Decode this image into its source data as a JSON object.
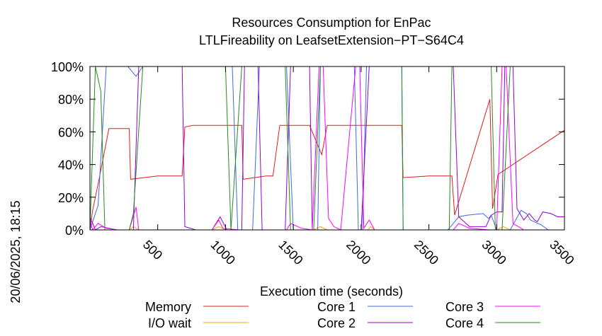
{
  "chart_data": {
    "type": "line",
    "title_line1": "Resources Consumption for EnPac",
    "title_line2": "LTLFireability on LeafsetExtension−PT−S64C4",
    "xlabel": "Execution time (seconds)",
    "ylabel": "",
    "side_label": "20/06/2025, 18:15",
    "xlim": [
      0,
      3500
    ],
    "ylim": [
      0,
      100
    ],
    "x_ticks": [
      500,
      1000,
      1500,
      2000,
      2500,
      3000,
      3500
    ],
    "y_ticks": [
      0,
      20,
      40,
      60,
      80,
      100
    ],
    "y_tick_labels": [
      "0%",
      "20%",
      "40%",
      "60%",
      "80%",
      "100%"
    ],
    "grid": false,
    "legend_position": "bottom",
    "series": [
      {
        "name": "Memory",
        "color": "#e41a1c",
        "points": [
          [
            0,
            0
          ],
          [
            20,
            12
          ],
          [
            60,
            28
          ],
          [
            140,
            62
          ],
          [
            290,
            62
          ],
          [
            300,
            31
          ],
          [
            500,
            33
          ],
          [
            680,
            33
          ],
          [
            700,
            63
          ],
          [
            760,
            64
          ],
          [
            1120,
            64
          ],
          [
            1130,
            31
          ],
          [
            1300,
            33
          ],
          [
            1350,
            33
          ],
          [
            1400,
            64
          ],
          [
            1620,
            64
          ],
          [
            1710,
            46
          ],
          [
            1750,
            64
          ],
          [
            1990,
            64
          ],
          [
            2000,
            64
          ],
          [
            2080,
            64
          ],
          [
            2300,
            64
          ],
          [
            2310,
            32
          ],
          [
            2500,
            33
          ],
          [
            2670,
            33
          ],
          [
            2690,
            9
          ],
          [
            2950,
            80
          ],
          [
            2970,
            13
          ],
          [
            3010,
            34
          ],
          [
            3500,
            61
          ]
        ]
      },
      {
        "name": "I/O wait",
        "color": "#ffa500",
        "points": [
          [
            0,
            0
          ],
          [
            290,
            0
          ],
          [
            320,
            2
          ],
          [
            360,
            0
          ],
          [
            900,
            0
          ],
          [
            950,
            2
          ],
          [
            1000,
            0
          ],
          [
            1650,
            0
          ],
          [
            1700,
            2
          ],
          [
            1750,
            0
          ],
          [
            2050,
            0
          ],
          [
            2070,
            2
          ],
          [
            2100,
            0
          ],
          [
            3000,
            0
          ],
          [
            3050,
            2
          ],
          [
            3100,
            0
          ],
          [
            3500,
            0
          ]
        ]
      },
      {
        "name": "Core 1",
        "color": "#4169e1",
        "points": [
          [
            0,
            0
          ],
          [
            60,
            15
          ],
          [
            120,
            100
          ],
          [
            280,
            100
          ],
          [
            340,
            94
          ],
          [
            390,
            100
          ],
          [
            700,
            100
          ],
          [
            740,
            100
          ],
          [
            1050,
            100
          ],
          [
            1090,
            0
          ],
          [
            1200,
            0
          ],
          [
            1250,
            100
          ],
          [
            1450,
            100
          ],
          [
            1500,
            0
          ],
          [
            1680,
            0
          ],
          [
            1700,
            100
          ],
          [
            1760,
            100
          ],
          [
            1850,
            100
          ],
          [
            1950,
            100
          ],
          [
            1980,
            0
          ],
          [
            2010,
            0
          ],
          [
            2040,
            100
          ],
          [
            2300,
            100
          ],
          [
            2310,
            0
          ],
          [
            2640,
            0
          ],
          [
            2720,
            8
          ],
          [
            2780,
            9
          ],
          [
            2900,
            10
          ],
          [
            2940,
            7
          ],
          [
            2960,
            9
          ],
          [
            3000,
            0
          ],
          [
            3100,
            0
          ],
          [
            3180,
            12
          ],
          [
            3220,
            10
          ],
          [
            3250,
            6
          ],
          [
            3330,
            3
          ],
          [
            3380,
            0
          ],
          [
            3500,
            0
          ]
        ]
      },
      {
        "name": "Core 2",
        "color": "#9400d3",
        "points": [
          [
            0,
            8
          ],
          [
            40,
            0
          ],
          [
            80,
            2
          ],
          [
            200,
            0
          ],
          [
            320,
            0
          ],
          [
            360,
            100
          ],
          [
            680,
            100
          ],
          [
            700,
            2
          ],
          [
            780,
            0
          ],
          [
            900,
            0
          ],
          [
            960,
            8
          ],
          [
            1010,
            0
          ],
          [
            1120,
            0
          ],
          [
            1140,
            100
          ],
          [
            1240,
            100
          ],
          [
            1270,
            0
          ],
          [
            1440,
            0
          ],
          [
            1480,
            100
          ],
          [
            1620,
            100
          ],
          [
            1640,
            0
          ],
          [
            2000,
            0
          ],
          [
            2060,
            100
          ],
          [
            2100,
            100
          ],
          [
            2300,
            100
          ],
          [
            2680,
            100
          ],
          [
            2720,
            8
          ],
          [
            2800,
            2
          ],
          [
            2920,
            2
          ],
          [
            2960,
            9
          ],
          [
            3000,
            11
          ],
          [
            3040,
            11
          ],
          [
            3060,
            100
          ],
          [
            3120,
            100
          ],
          [
            3150,
            13
          ],
          [
            3200,
            6
          ],
          [
            3240,
            10
          ],
          [
            3280,
            6
          ],
          [
            3300,
            5
          ],
          [
            3340,
            11
          ],
          [
            3400,
            10
          ],
          [
            3450,
            8
          ],
          [
            3500,
            8
          ]
        ]
      },
      {
        "name": "Core 3",
        "color": "#ff00ff",
        "points": [
          [
            0,
            6
          ],
          [
            20,
            0
          ],
          [
            60,
            4
          ],
          [
            120,
            1
          ],
          [
            200,
            0
          ],
          [
            290,
            0
          ],
          [
            340,
            14
          ],
          [
            360,
            0
          ],
          [
            700,
            0
          ],
          [
            900,
            0
          ],
          [
            950,
            6
          ],
          [
            980,
            1
          ],
          [
            1100,
            0
          ],
          [
            1450,
            0
          ],
          [
            1480,
            4
          ],
          [
            1560,
            1
          ],
          [
            1640,
            0
          ],
          [
            1690,
            100
          ],
          [
            1720,
            100
          ],
          [
            1760,
            7
          ],
          [
            1800,
            2
          ],
          [
            1850,
            0
          ],
          [
            1960,
            100
          ],
          [
            1990,
            100
          ],
          [
            2020,
            1
          ],
          [
            2060,
            6
          ],
          [
            2100,
            0
          ],
          [
            2680,
            0
          ],
          [
            2720,
            4
          ],
          [
            2800,
            1
          ],
          [
            2950,
            0
          ],
          [
            3000,
            0
          ],
          [
            3040,
            100
          ],
          [
            3070,
            100
          ],
          [
            3120,
            4
          ],
          [
            3200,
            0
          ],
          [
            3500,
            0
          ]
        ]
      },
      {
        "name": "Core 4",
        "color": "#228b22",
        "points": [
          [
            0,
            0
          ],
          [
            40,
            100
          ],
          [
            80,
            85
          ],
          [
            110,
            0
          ],
          [
            290,
            0
          ],
          [
            320,
            10
          ],
          [
            390,
            100
          ],
          [
            700,
            100
          ],
          [
            750,
            100
          ],
          [
            1000,
            100
          ],
          [
            1040,
            0
          ],
          [
            1120,
            100
          ],
          [
            1440,
            100
          ],
          [
            1480,
            0
          ],
          [
            1650,
            0
          ],
          [
            1700,
            100
          ],
          [
            1760,
            100
          ],
          [
            2300,
            100
          ],
          [
            2310,
            0
          ],
          [
            2650,
            0
          ],
          [
            2670,
            100
          ],
          [
            2960,
            100
          ],
          [
            2990,
            0
          ],
          [
            3040,
            0
          ],
          [
            3100,
            100
          ],
          [
            3500,
            100
          ]
        ]
      }
    ]
  }
}
